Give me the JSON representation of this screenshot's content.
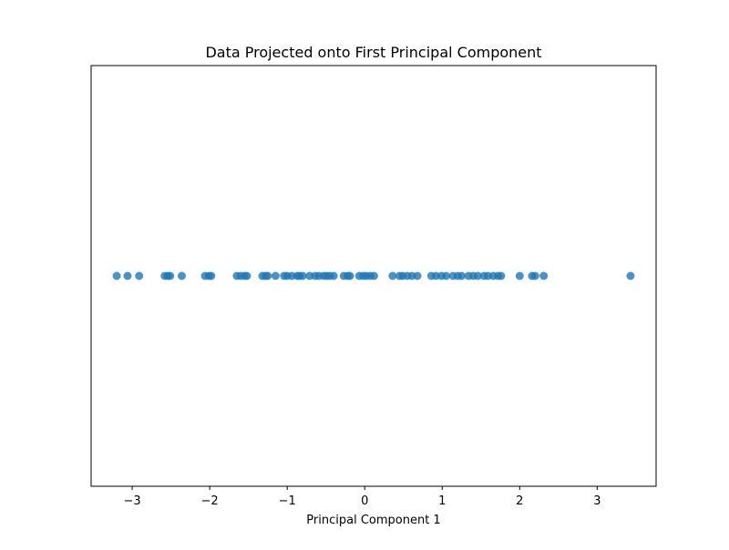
{
  "chart_data": {
    "type": "scatter",
    "title": "Data Projected onto First Principal Component",
    "x_label": "Principal Component 1",
    "x": [
      -3.2,
      -3.06,
      -2.91,
      -2.58,
      -2.54,
      -2.51,
      -2.36,
      -2.06,
      -2.01,
      -1.98,
      -1.65,
      -1.6,
      -1.55,
      -1.52,
      -1.32,
      -1.28,
      -1.25,
      -1.15,
      -1.04,
      -1.0,
      -0.94,
      -0.87,
      -0.84,
      -0.8,
      -0.71,
      -0.64,
      -0.59,
      -0.53,
      -0.49,
      -0.45,
      -0.4,
      -0.27,
      -0.22,
      -0.19,
      -0.07,
      -0.02,
      0.02,
      0.07,
      0.12,
      0.36,
      0.45,
      0.49,
      0.55,
      0.61,
      0.68,
      0.86,
      0.92,
      0.99,
      1.05,
      1.14,
      1.2,
      1.25,
      1.34,
      1.4,
      1.46,
      1.54,
      1.59,
      1.66,
      1.72,
      1.76,
      2.0,
      2.16,
      2.2,
      2.31,
      3.43
    ],
    "y": [
      0,
      0,
      0,
      0,
      0,
      0,
      0,
      0,
      0,
      0,
      0,
      0,
      0,
      0,
      0,
      0,
      0,
      0,
      0,
      0,
      0,
      0,
      0,
      0,
      0,
      0,
      0,
      0,
      0,
      0,
      0,
      0,
      0,
      0,
      0,
      0,
      0,
      0,
      0,
      0,
      0,
      0,
      0,
      0,
      0,
      0,
      0,
      0,
      0,
      0,
      0,
      0,
      0,
      0,
      0,
      0,
      0,
      0,
      0,
      0,
      0,
      0,
      0,
      0,
      0
    ],
    "color": "#1f77b4",
    "xlim": [
      -3.53,
      3.76
    ],
    "ylim": [
      -1,
      1
    ],
    "xticks": [
      {
        "value": -3,
        "label": "−3"
      },
      {
        "value": -2,
        "label": "−2"
      },
      {
        "value": -1,
        "label": "−1"
      },
      0,
      1,
      2,
      3
    ]
  }
}
